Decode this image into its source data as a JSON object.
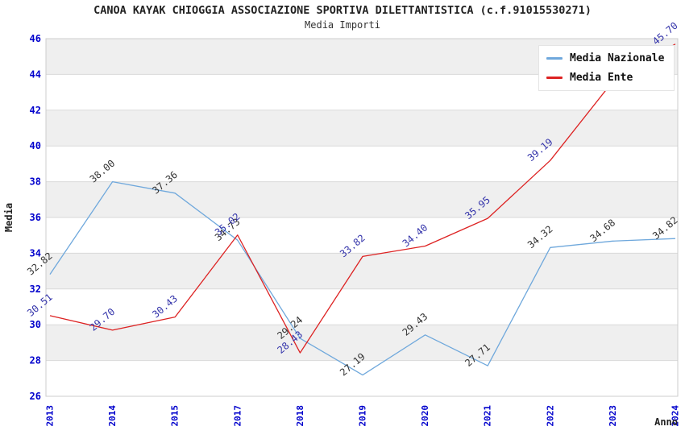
{
  "chart_data": {
    "type": "line",
    "title": "CANOA KAYAK CHIOGGIA ASSOCIAZIONE SPORTIVA DILETTANTISTICA (c.f.91015530271)",
    "subtitle": "Media Importi",
    "xlabel": "Anno",
    "ylabel": "Media",
    "x_categories": [
      "2013",
      "2014",
      "2015",
      "2017",
      "2018",
      "2019",
      "2020",
      "2021",
      "2022",
      "2023",
      "2024"
    ],
    "ylim": [
      26,
      46
    ],
    "y_ticks": [
      26,
      28,
      30,
      32,
      34,
      36,
      38,
      40,
      42,
      44,
      46
    ],
    "grid": "horizontal gridlines with alternating gray bands",
    "legend_position": "top-right",
    "series": [
      {
        "name": "Media Nazionale",
        "color": "#6FA8DC",
        "label_color": "#333333",
        "values": [
          32.82,
          38.0,
          37.36,
          34.73,
          29.24,
          27.19,
          29.43,
          27.71,
          34.32,
          34.68,
          34.82
        ],
        "labels": [
          "32.82",
          "38.00",
          "37.36",
          "34.73",
          "29.24",
          "27.19",
          "29.43",
          "27.71",
          "34.32",
          "34.68",
          "34.82"
        ]
      },
      {
        "name": "Media Ente",
        "color": "#DD2222",
        "label_color": "#3333AA",
        "values": [
          30.51,
          29.7,
          30.43,
          35.02,
          28.43,
          33.82,
          34.4,
          35.95,
          39.19,
          43.61,
          45.7
        ],
        "labels": [
          "30.51",
          "29.70",
          "30.43",
          "35.02",
          "28.43",
          "33.82",
          "34.40",
          "35.95",
          "39.19",
          null,
          "45.70"
        ],
        "note": "2023 value label hidden behind legend box; value estimated from gridlines"
      }
    ],
    "colors": {
      "band": "#EFEFEF",
      "gridline": "#D9D9D9",
      "frame": "#CCCCCC",
      "tick_label": "#0000CC",
      "axis_title": "#222222"
    }
  }
}
